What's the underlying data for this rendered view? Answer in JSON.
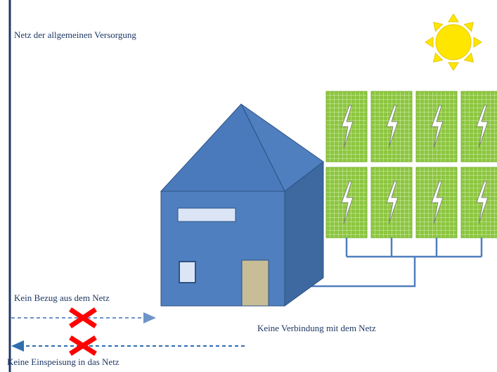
{
  "labels": {
    "grid": "Netz der allgemeinen Versorgung",
    "no_supply": "Kein Bezug aus dem Netz",
    "no_connection": "Keine Verbindung mit dem Netz",
    "no_feed_in": "Keine Einspeisung in das Netz"
  }
}
